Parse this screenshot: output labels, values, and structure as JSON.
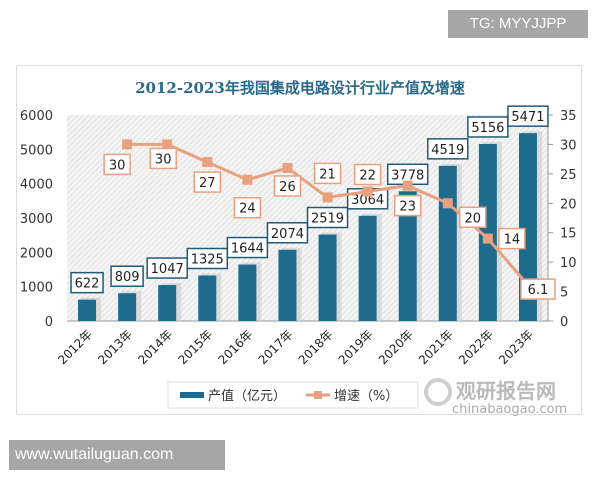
{
  "watermark_top": "TG: MYYJJPP",
  "watermark_bottom": "www.wutailuguan.com",
  "brand_watermark": {
    "name": "观研报告网",
    "url": "chinabaogao.com"
  },
  "chart_data": {
    "type": "bar+line",
    "title": "2012-2023年我国集成电路设计行业产值及增速",
    "categories": [
      "2012年",
      "2013年",
      "2014年",
      "2015年",
      "2016年",
      "2017年",
      "2018年",
      "2019年",
      "2020年",
      "2021年",
      "2022年",
      "2023年"
    ],
    "series": [
      {
        "name": "产值（亿元）",
        "type": "bar",
        "axis": "left",
        "color": "#1f6b8e",
        "values": [
          622,
          809,
          1047,
          1325,
          1644,
          2074,
          2519,
          3064,
          3778,
          4519,
          5156,
          5471
        ]
      },
      {
        "name": "增速（%）",
        "type": "line",
        "axis": "right",
        "color": "#e8a07e",
        "values": [
          null,
          30,
          30,
          27,
          24,
          26,
          21,
          22,
          23,
          20,
          14,
          6.1
        ]
      }
    ],
    "y_left": {
      "range": [
        0,
        6000
      ],
      "ticks": [
        "0",
        "1000",
        "2000",
        "3000",
        "4000",
        "5000",
        "6000"
      ]
    },
    "y_right": {
      "range": [
        0,
        35
      ],
      "ticks": [
        "0",
        "5",
        "10",
        "15",
        "20",
        "25",
        "30",
        "35"
      ]
    },
    "legend": "bottom",
    "grid": false
  }
}
